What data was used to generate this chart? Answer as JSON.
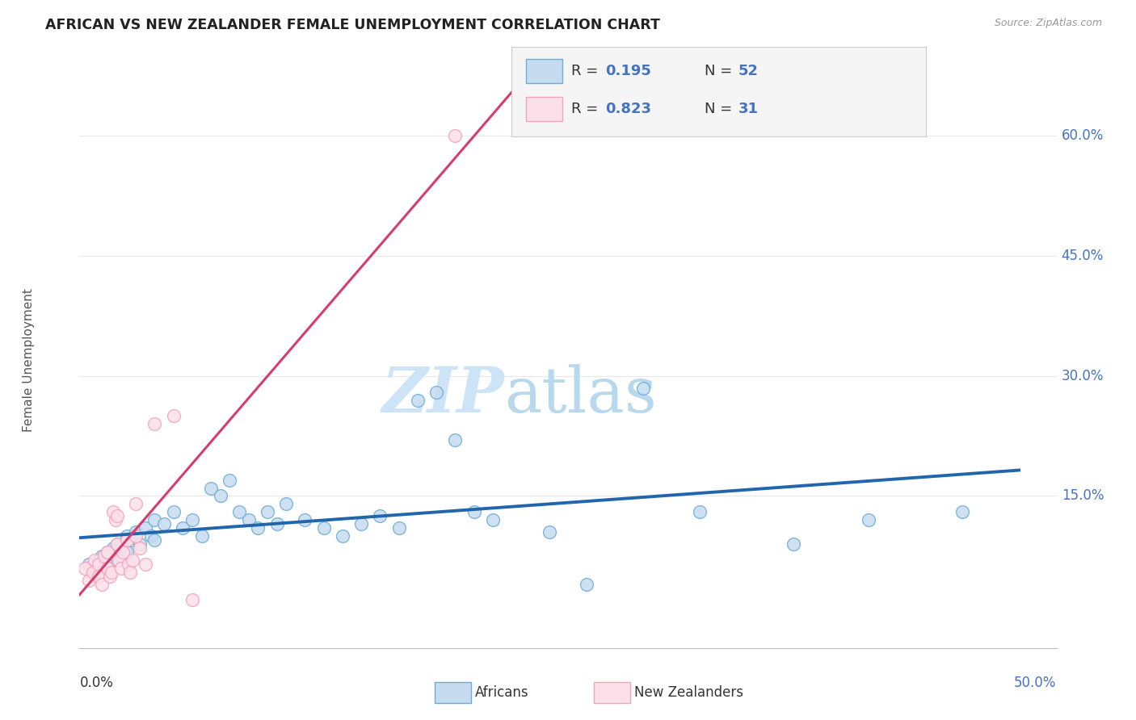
{
  "title": "AFRICAN VS NEW ZEALANDER FEMALE UNEMPLOYMENT CORRELATION CHART",
  "source": "Source: ZipAtlas.com",
  "ylabel": "Female Unemployment",
  "xlim": [
    0.0,
    0.52
  ],
  "ylim": [
    -0.04,
    0.68
  ],
  "ytick_vals": [
    0.15,
    0.3,
    0.45,
    0.6
  ],
  "ytick_labels": [
    "15.0%",
    "30.0%",
    "45.0%",
    "60.0%"
  ],
  "african_face": "#c6dbef",
  "african_edge": "#6baed6",
  "nz_face": "#fce0e9",
  "nz_edge": "#f4a3bb",
  "trendline_african": "#2166ac",
  "trendline_nz": "#d63d6e",
  "bg_color": "#ffffff",
  "grid_color": "#e8e8e8",
  "title_color": "#222222",
  "source_color": "#999999",
  "axis_label_color": "#555555",
  "right_tick_color": "#4472c4",
  "africans_x": [
    0.005,
    0.008,
    0.01,
    0.01,
    0.012,
    0.015,
    0.015,
    0.018,
    0.02,
    0.02,
    0.022,
    0.025,
    0.025,
    0.028,
    0.03,
    0.032,
    0.035,
    0.038,
    0.04,
    0.04,
    0.045,
    0.05,
    0.055,
    0.06,
    0.065,
    0.07,
    0.075,
    0.08,
    0.085,
    0.09,
    0.095,
    0.1,
    0.105,
    0.11,
    0.12,
    0.13,
    0.14,
    0.15,
    0.16,
    0.17,
    0.18,
    0.19,
    0.2,
    0.21,
    0.22,
    0.25,
    0.27,
    0.3,
    0.33,
    0.38,
    0.42,
    0.47
  ],
  "africans_y": [
    0.065,
    0.055,
    0.07,
    0.05,
    0.075,
    0.08,
    0.06,
    0.085,
    0.09,
    0.07,
    0.075,
    0.1,
    0.08,
    0.095,
    0.105,
    0.09,
    0.11,
    0.1,
    0.12,
    0.095,
    0.115,
    0.13,
    0.11,
    0.12,
    0.1,
    0.16,
    0.15,
    0.17,
    0.13,
    0.12,
    0.11,
    0.13,
    0.115,
    0.14,
    0.12,
    0.11,
    0.1,
    0.115,
    0.125,
    0.11,
    0.27,
    0.28,
    0.22,
    0.13,
    0.12,
    0.105,
    0.04,
    0.285,
    0.13,
    0.09,
    0.12,
    0.13
  ],
  "nz_x": [
    0.003,
    0.005,
    0.007,
    0.008,
    0.01,
    0.01,
    0.012,
    0.013,
    0.015,
    0.015,
    0.016,
    0.017,
    0.018,
    0.019,
    0.02,
    0.02,
    0.021,
    0.022,
    0.023,
    0.025,
    0.026,
    0.027,
    0.028,
    0.03,
    0.03,
    0.032,
    0.035,
    0.04,
    0.05,
    0.06,
    0.2
  ],
  "nz_y": [
    0.06,
    0.045,
    0.055,
    0.07,
    0.065,
    0.05,
    0.04,
    0.075,
    0.08,
    0.06,
    0.05,
    0.055,
    0.13,
    0.12,
    0.125,
    0.09,
    0.07,
    0.06,
    0.08,
    0.095,
    0.065,
    0.055,
    0.07,
    0.14,
    0.1,
    0.085,
    0.065,
    0.24,
    0.25,
    0.02,
    0.6
  ]
}
